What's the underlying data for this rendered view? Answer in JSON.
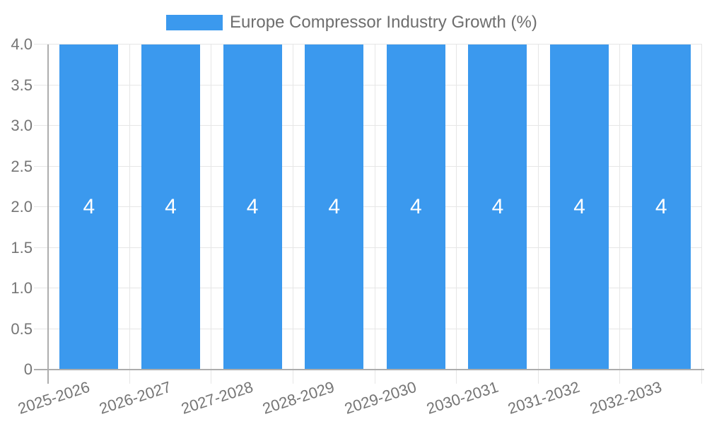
{
  "chart_data": {
    "type": "bar",
    "title": "Europe Compressor Industry Growth (%)",
    "categories": [
      "2025-2026",
      "2026-2027",
      "2027-2028",
      "2028-2029",
      "2029-2030",
      "2030-2031",
      "2031-2032",
      "2032-2033"
    ],
    "series": [
      {
        "name": "Europe Compressor Industry Growth (%)",
        "values": [
          4,
          4,
          4,
          4,
          4,
          4,
          4,
          4
        ]
      }
    ],
    "bar_value_labels": [
      "4",
      "4",
      "4",
      "4",
      "4",
      "4",
      "4",
      "4"
    ],
    "ylim": [
      0,
      4
    ],
    "y_tick_values": [
      0,
      0.5,
      1,
      1.5,
      2,
      2.5,
      3,
      3.5,
      4
    ],
    "y_tick_labels": [
      "0",
      "0.5",
      "1.0",
      "1.5",
      "2.0",
      "2.5",
      "3.0",
      "3.5",
      "4.0"
    ],
    "xlabel": "",
    "ylabel": "",
    "grid": true,
    "legend_position": "top-center",
    "colors": {
      "bar": "#3B99EE",
      "grid": "#E6E6E6",
      "axis": "#ADADAD",
      "tick_text": "#757575",
      "legend_text": "#6E6E6E",
      "bar_label_text": "#FFFFFF"
    }
  }
}
